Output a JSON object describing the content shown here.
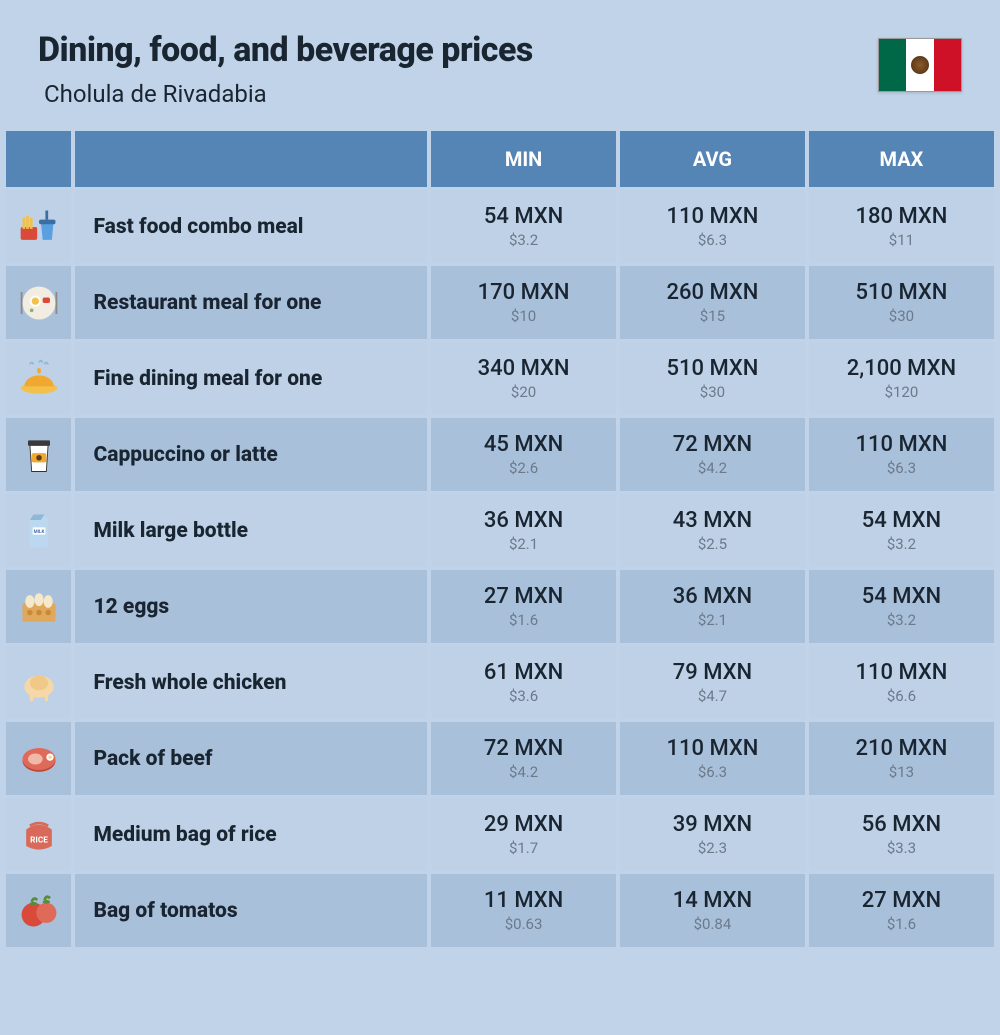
{
  "header": {
    "title": "Dining, food, and beverage prices",
    "subtitle": "Cholula de Rivadabia",
    "flag_colors": {
      "green": "#006847",
      "white": "#ffffff",
      "red": "#ce1126"
    }
  },
  "table": {
    "columns": {
      "min": "MIN",
      "avg": "AVG",
      "max": "MAX"
    },
    "header_bg": "#5585b5",
    "header_text_color": "#ffffff",
    "row_light_bg": "#bfd1e6",
    "row_dark_bg": "#a9c0db",
    "price_main_color": "#1a2532",
    "price_sub_color": "#6b7a8a",
    "rows": [
      {
        "icon": "fast-food",
        "label": "Fast food combo meal",
        "min_mxn": "54 MXN",
        "min_usd": "$3.2",
        "avg_mxn": "110 MXN",
        "avg_usd": "$6.3",
        "max_mxn": "180 MXN",
        "max_usd": "$11"
      },
      {
        "icon": "restaurant",
        "label": "Restaurant meal for one",
        "min_mxn": "170 MXN",
        "min_usd": "$10",
        "avg_mxn": "260 MXN",
        "avg_usd": "$15",
        "max_mxn": "510 MXN",
        "max_usd": "$30"
      },
      {
        "icon": "fine-dining",
        "label": "Fine dining meal for one",
        "min_mxn": "340 MXN",
        "min_usd": "$20",
        "avg_mxn": "510 MXN",
        "avg_usd": "$30",
        "max_mxn": "2,100 MXN",
        "max_usd": "$120"
      },
      {
        "icon": "coffee",
        "label": "Cappuccino or latte",
        "min_mxn": "45 MXN",
        "min_usd": "$2.6",
        "avg_mxn": "72 MXN",
        "avg_usd": "$4.2",
        "max_mxn": "110 MXN",
        "max_usd": "$6.3"
      },
      {
        "icon": "milk",
        "label": "Milk large bottle",
        "min_mxn": "36 MXN",
        "min_usd": "$2.1",
        "avg_mxn": "43 MXN",
        "avg_usd": "$2.5",
        "max_mxn": "54 MXN",
        "max_usd": "$3.2"
      },
      {
        "icon": "eggs",
        "label": "12 eggs",
        "min_mxn": "27 MXN",
        "min_usd": "$1.6",
        "avg_mxn": "36 MXN",
        "avg_usd": "$2.1",
        "max_mxn": "54 MXN",
        "max_usd": "$3.2"
      },
      {
        "icon": "chicken",
        "label": "Fresh whole chicken",
        "min_mxn": "61 MXN",
        "min_usd": "$3.6",
        "avg_mxn": "79 MXN",
        "avg_usd": "$4.7",
        "max_mxn": "110 MXN",
        "max_usd": "$6.6"
      },
      {
        "icon": "beef",
        "label": "Pack of beef",
        "min_mxn": "72 MXN",
        "min_usd": "$4.2",
        "avg_mxn": "110 MXN",
        "avg_usd": "$6.3",
        "max_mxn": "210 MXN",
        "max_usd": "$13"
      },
      {
        "icon": "rice",
        "label": "Medium bag of rice",
        "min_mxn": "29 MXN",
        "min_usd": "$1.7",
        "avg_mxn": "39 MXN",
        "avg_usd": "$2.3",
        "max_mxn": "56 MXN",
        "max_usd": "$3.3"
      },
      {
        "icon": "tomato",
        "label": "Bag of tomatos",
        "min_mxn": "11 MXN",
        "min_usd": "$0.63",
        "avg_mxn": "14 MXN",
        "avg_usd": "$0.84",
        "max_mxn": "27 MXN",
        "max_usd": "$1.6"
      }
    ]
  }
}
